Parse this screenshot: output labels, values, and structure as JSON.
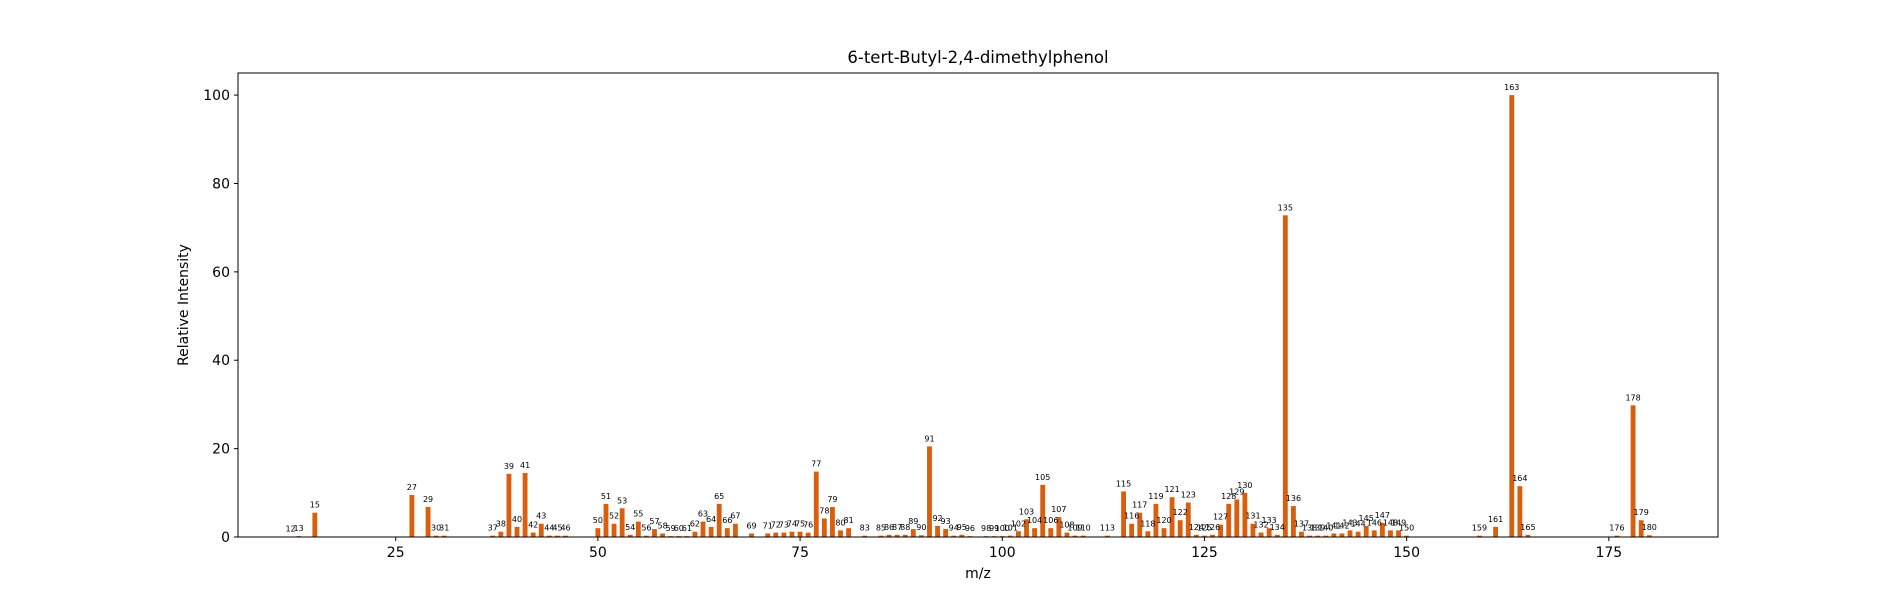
{
  "chart_data": {
    "type": "bar",
    "title": "6-tert-Butyl-2,4-dimethylphenol",
    "xlabel": "m/z",
    "ylabel": "Relative Intensity",
    "xlim": [
      5.5,
      188.5
    ],
    "ylim": [
      0,
      105
    ],
    "xticks": [
      25,
      50,
      75,
      100,
      125,
      150,
      175
    ],
    "yticks": [
      0,
      20,
      40,
      60,
      80,
      100
    ],
    "color": "#d95f0e",
    "grid": false,
    "series": [
      {
        "x": [
          12,
          13,
          15,
          27,
          29,
          30,
          31,
          37,
          38,
          39,
          40,
          41,
          42,
          43,
          44,
          45,
          46,
          50,
          51,
          52,
          53,
          54,
          55,
          56,
          57,
          58,
          59,
          60,
          61,
          62,
          63,
          64,
          65,
          66,
          67,
          69,
          71,
          72,
          73,
          74,
          75,
          76,
          77,
          78,
          79,
          80,
          81,
          83,
          85,
          86,
          87,
          88,
          89,
          90,
          91,
          92,
          93,
          94,
          95,
          96,
          98,
          99,
          100,
          101,
          102,
          103,
          104,
          105,
          106,
          107,
          108,
          109,
          110,
          113,
          115,
          116,
          117,
          118,
          119,
          120,
          121,
          122,
          123,
          124,
          125,
          126,
          127,
          128,
          129,
          130,
          131,
          132,
          133,
          134,
          135,
          136,
          137,
          138,
          139,
          140,
          141,
          142,
          143,
          144,
          145,
          146,
          147,
          148,
          149,
          150,
          159,
          161,
          163,
          164,
          165,
          176,
          178,
          179,
          180
        ],
        "y": [
          0.1,
          0.2,
          5.5,
          9.5,
          6.8,
          0.3,
          0.3,
          0.3,
          1.2,
          14.3,
          2.3,
          14.5,
          1.0,
          3.0,
          0.3,
          0.3,
          0.3,
          2.0,
          7.5,
          3.0,
          6.5,
          0.5,
          3.5,
          0.3,
          1.8,
          0.8,
          0.2,
          0.2,
          0.2,
          1.2,
          3.5,
          2.3,
          7.5,
          2.0,
          3.0,
          0.8,
          0.8,
          1.0,
          1.0,
          1.2,
          1.2,
          1.0,
          14.8,
          4.2,
          6.8,
          1.5,
          2.0,
          0.3,
          0.3,
          0.5,
          0.5,
          0.5,
          1.8,
          0.4,
          20.5,
          2.5,
          1.8,
          0.3,
          0.5,
          0.2,
          0.2,
          0.2,
          0.2,
          0.3,
          1.3,
          4.0,
          2.0,
          11.8,
          2.0,
          4.5,
          1.0,
          0.3,
          0.3,
          0.3,
          10.3,
          3.0,
          5.5,
          1.3,
          7.5,
          2.0,
          9.0,
          3.8,
          7.8,
          0.5,
          0.3,
          0.5,
          2.8,
          7.5,
          8.5,
          10.0,
          3.0,
          1.0,
          2.0,
          0.5,
          72.8,
          7.0,
          1.2,
          0.3,
          0.3,
          0.3,
          0.8,
          0.8,
          1.5,
          1.2,
          2.5,
          1.5,
          3.2,
          1.5,
          1.5,
          0.3,
          0.3,
          2.3,
          100.0,
          11.5,
          0.5,
          0.3,
          29.8,
          3.8,
          0.4
        ]
      }
    ]
  }
}
